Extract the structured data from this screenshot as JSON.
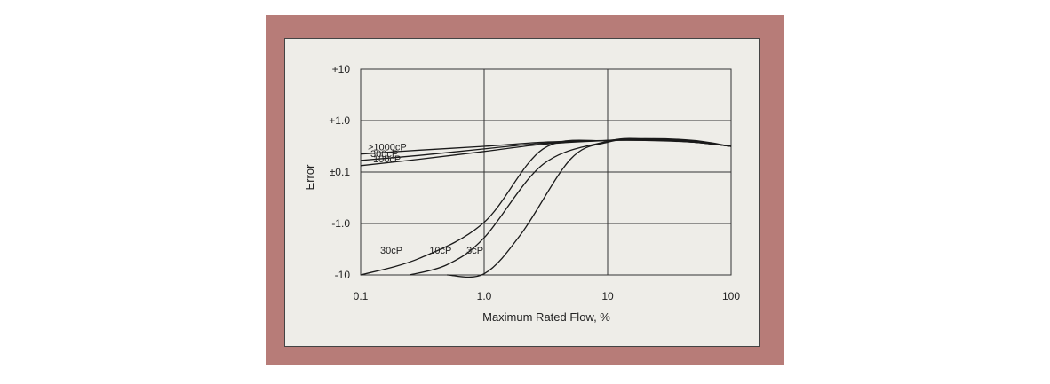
{
  "chart_data": {
    "type": "line",
    "xlabel": "Maximum Rated Flow, %",
    "ylabel": "Error",
    "x_scale": "log",
    "y_scale": "log-symmetric",
    "xlim": [
      0.1,
      100
    ],
    "x_ticks": [
      "0.1",
      "1.0",
      "10",
      "100"
    ],
    "y_ticks": [
      "+10",
      "+1.0",
      "±0.1",
      "-1.0",
      "-10"
    ],
    "grid": true,
    "series": [
      {
        "name": ">1000cP",
        "x": [
          0.1,
          0.3,
          1,
          3,
          10,
          20,
          50,
          100
        ],
        "y": [
          0.07,
          0.085,
          0.1,
          0.12,
          0.13,
          0.13,
          0.12,
          0.1
        ]
      },
      {
        "name": "300cP",
        "x": [
          0.1,
          0.3,
          1,
          3,
          10,
          20,
          50,
          100
        ],
        "y": [
          0.045,
          0.065,
          0.09,
          0.115,
          0.13,
          0.135,
          0.12,
          0.1
        ]
      },
      {
        "name": "100cP",
        "x": [
          0.1,
          0.3,
          1,
          3,
          10,
          20,
          50,
          100
        ],
        "y": [
          0.025,
          0.05,
          0.08,
          0.11,
          0.13,
          0.135,
          0.12,
          0.1
        ]
      },
      {
        "name": "30cP",
        "x": [
          0.1,
          0.3,
          1,
          3,
          10,
          20,
          50,
          100
        ],
        "y": [
          -10,
          -1.5,
          -0.3,
          0.09,
          0.13,
          0.14,
          0.125,
          0.1
        ]
      },
      {
        "name": "10cP",
        "x": [
          0.25,
          0.5,
          1,
          3,
          10,
          20,
          50,
          100
        ],
        "y": [
          -10,
          -2,
          -0.6,
          0.03,
          0.125,
          0.14,
          0.125,
          0.1
        ]
      },
      {
        "name": "3cP",
        "x": [
          0.5,
          1,
          2,
          5,
          10,
          20,
          50,
          100
        ],
        "y": [
          -10,
          -3,
          -0.5,
          0.05,
          0.12,
          0.14,
          0.13,
          0.1
        ]
      }
    ]
  }
}
